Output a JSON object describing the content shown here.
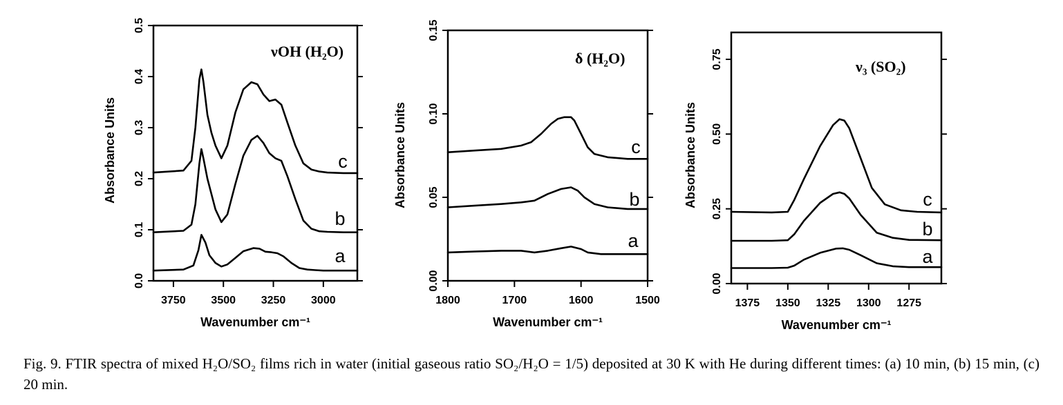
{
  "caption": "Fig. 9. FTIR spectra of mixed H₂O/SO₂ films rich in water (initial gaseous ratio SO₂/H₂O = 1/5) deposited at 30 K with He during different times: (a) 10 min, (b) 15 min, (c) 20 min.",
  "chart_data": [
    {
      "type": "line",
      "annotation": "νOH (H₂O)",
      "xlabel": "Wavenumber cm⁻¹",
      "ylabel": "Absorbance Units",
      "xlim": [
        3850,
        2830
      ],
      "ylim": [
        0.0,
        0.5
      ],
      "xticks": [
        3750,
        3500,
        3250,
        3000
      ],
      "yticks": [
        0.0,
        0.1,
        0.2,
        0.3,
        0.4,
        0.5
      ],
      "ytick_labels": [
        "0.0",
        "0.1",
        "0.2",
        "0.3",
        "0.4",
        "0.5"
      ],
      "series": [
        {
          "name": "a",
          "x": [
            3850,
            3700,
            3650,
            3625,
            3610,
            3590,
            3570,
            3540,
            3510,
            3480,
            3440,
            3400,
            3350,
            3320,
            3290,
            3260,
            3230,
            3200,
            3160,
            3120,
            3080,
            3040,
            3000,
            2950,
            2830
          ],
          "y": [
            0.02,
            0.022,
            0.03,
            0.06,
            0.09,
            0.075,
            0.05,
            0.035,
            0.028,
            0.032,
            0.045,
            0.058,
            0.064,
            0.063,
            0.057,
            0.056,
            0.054,
            0.048,
            0.035,
            0.025,
            0.022,
            0.021,
            0.02,
            0.02,
            0.02
          ]
        },
        {
          "name": "b",
          "x": [
            3850,
            3700,
            3660,
            3640,
            3620,
            3610,
            3600,
            3580,
            3560,
            3540,
            3510,
            3480,
            3440,
            3400,
            3360,
            3330,
            3300,
            3270,
            3240,
            3210,
            3180,
            3140,
            3100,
            3060,
            3020,
            2980,
            2900,
            2830
          ],
          "y": [
            0.095,
            0.098,
            0.11,
            0.15,
            0.23,
            0.258,
            0.24,
            0.2,
            0.17,
            0.14,
            0.115,
            0.13,
            0.19,
            0.245,
            0.276,
            0.284,
            0.27,
            0.25,
            0.24,
            0.235,
            0.205,
            0.16,
            0.118,
            0.102,
            0.097,
            0.096,
            0.095,
            0.095
          ]
        },
        {
          "name": "c",
          "x": [
            3850,
            3700,
            3660,
            3640,
            3620,
            3610,
            3600,
            3580,
            3560,
            3540,
            3510,
            3480,
            3440,
            3400,
            3360,
            3330,
            3300,
            3270,
            3240,
            3210,
            3180,
            3140,
            3100,
            3060,
            3020,
            2980,
            2900,
            2830
          ],
          "y": [
            0.212,
            0.216,
            0.235,
            0.3,
            0.395,
            0.414,
            0.39,
            0.325,
            0.29,
            0.265,
            0.24,
            0.265,
            0.33,
            0.375,
            0.389,
            0.385,
            0.365,
            0.352,
            0.355,
            0.345,
            0.31,
            0.265,
            0.23,
            0.218,
            0.214,
            0.212,
            0.211,
            0.211
          ]
        }
      ]
    },
    {
      "type": "line",
      "annotation": "δ (H₂O)",
      "xlabel": "Wavenumber cm⁻¹",
      "ylabel": "Absorbance Units",
      "xlim": [
        1800,
        1500
      ],
      "ylim": [
        0.0,
        0.15
      ],
      "xticks": [
        1800,
        1700,
        1600,
        1500
      ],
      "yticks": [
        0.0,
        0.05,
        0.1,
        0.15
      ],
      "ytick_labels": [
        "0.00",
        "0.05",
        "0.10",
        "0.15"
      ],
      "series": [
        {
          "name": "a",
          "x": [
            1800,
            1760,
            1720,
            1690,
            1670,
            1650,
            1630,
            1615,
            1600,
            1590,
            1570,
            1540,
            1500
          ],
          "y": [
            0.017,
            0.0175,
            0.018,
            0.018,
            0.017,
            0.018,
            0.0195,
            0.0205,
            0.019,
            0.017,
            0.016,
            0.016,
            0.016
          ]
        },
        {
          "name": "b",
          "x": [
            1800,
            1760,
            1720,
            1690,
            1670,
            1650,
            1630,
            1615,
            1605,
            1595,
            1580,
            1560,
            1530,
            1500
          ],
          "y": [
            0.044,
            0.045,
            0.046,
            0.047,
            0.048,
            0.052,
            0.055,
            0.056,
            0.054,
            0.05,
            0.046,
            0.044,
            0.043,
            0.043
          ]
        },
        {
          "name": "c",
          "x": [
            1800,
            1760,
            1720,
            1690,
            1675,
            1660,
            1645,
            1635,
            1625,
            1615,
            1610,
            1600,
            1590,
            1580,
            1560,
            1530,
            1500
          ],
          "y": [
            0.077,
            0.078,
            0.079,
            0.081,
            0.083,
            0.088,
            0.094,
            0.097,
            0.098,
            0.098,
            0.096,
            0.088,
            0.08,
            0.076,
            0.074,
            0.073,
            0.073
          ]
        }
      ]
    },
    {
      "type": "line",
      "annotation": "ν₃ (SO₂)",
      "xlabel": "Wavenumber cm⁻¹",
      "ylabel": "Absorbance Units",
      "xlim": [
        1385,
        1255
      ],
      "ylim": [
        0.0,
        0.84
      ],
      "xticks": [
        1375,
        1350,
        1325,
        1300,
        1275
      ],
      "yticks": [
        0.0,
        0.25,
        0.5,
        0.75
      ],
      "ytick_labels": [
        "0.00",
        "0.25",
        "0.50",
        "0.75"
      ],
      "series": [
        {
          "name": "a",
          "x": [
            1385,
            1360,
            1350,
            1346,
            1340,
            1330,
            1320,
            1316,
            1312,
            1305,
            1295,
            1285,
            1275,
            1255
          ],
          "y": [
            0.052,
            0.052,
            0.053,
            0.06,
            0.08,
            0.103,
            0.117,
            0.118,
            0.113,
            0.095,
            0.068,
            0.058,
            0.055,
            0.055
          ]
        },
        {
          "name": "b",
          "x": [
            1385,
            1360,
            1350,
            1346,
            1340,
            1330,
            1322,
            1318,
            1315,
            1312,
            1305,
            1295,
            1285,
            1275,
            1255
          ],
          "y": [
            0.143,
            0.143,
            0.145,
            0.165,
            0.21,
            0.27,
            0.3,
            0.305,
            0.3,
            0.285,
            0.23,
            0.17,
            0.153,
            0.146,
            0.145
          ]
        },
        {
          "name": "c",
          "x": [
            1385,
            1360,
            1350,
            1346,
            1340,
            1330,
            1322,
            1318,
            1315,
            1312,
            1305,
            1298,
            1290,
            1280,
            1270,
            1255
          ],
          "y": [
            0.24,
            0.238,
            0.24,
            0.28,
            0.35,
            0.46,
            0.53,
            0.55,
            0.545,
            0.52,
            0.42,
            0.32,
            0.265,
            0.245,
            0.24,
            0.238
          ]
        }
      ]
    }
  ]
}
